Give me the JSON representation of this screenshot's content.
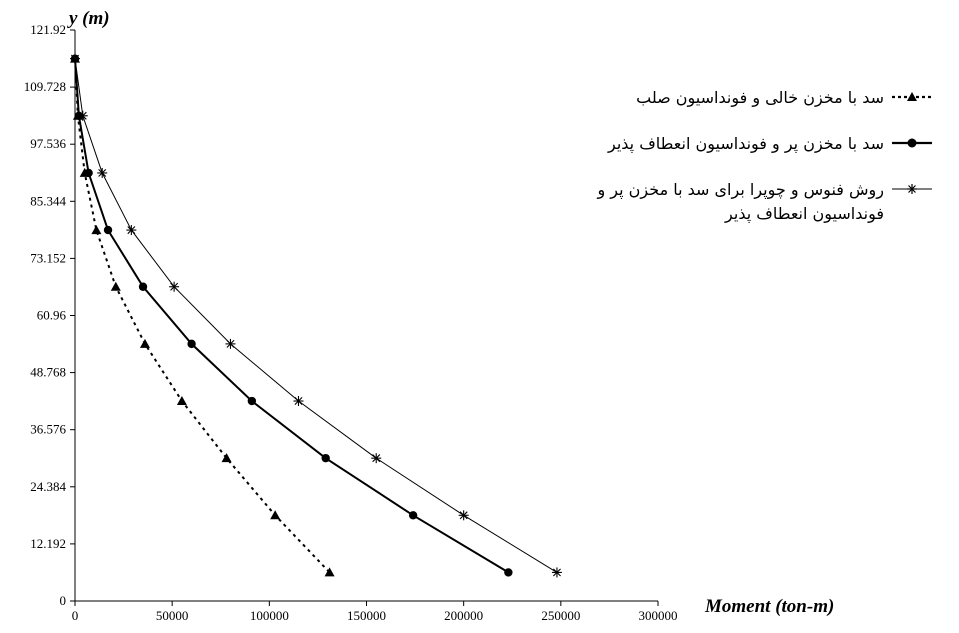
{
  "chart_data": {
    "type": "line",
    "xlabel": "Moment (ton-m)",
    "ylabel": "y  (m)",
    "xlim": [
      0,
      300000
    ],
    "ylim": [
      0,
      121.92
    ],
    "x_ticks": [
      "0",
      "50000",
      "100000",
      "150000",
      "200000",
      "250000",
      "300000"
    ],
    "y_ticks": [
      "0",
      "12.192",
      "24.384",
      "36.576",
      "48.768",
      "60.96",
      "73.152",
      "85.344",
      "97.536",
      "109.728",
      "121.92"
    ],
    "grid": false,
    "legend_position": "right",
    "series": [
      {
        "name": "سد با مخزن خالی و فونداسیون صلب",
        "color": "#000000",
        "line_style": "dotted",
        "marker": "triangle",
        "points": [
          {
            "x": 0,
            "y": 115.8
          },
          {
            "x": 1500,
            "y": 103.6
          },
          {
            "x": 5000,
            "y": 91.4
          },
          {
            "x": 11000,
            "y": 79.2
          },
          {
            "x": 21000,
            "y": 67.1
          },
          {
            "x": 36000,
            "y": 54.9
          },
          {
            "x": 55000,
            "y": 42.7
          },
          {
            "x": 78000,
            "y": 30.5
          },
          {
            "x": 103000,
            "y": 18.3
          },
          {
            "x": 131000,
            "y": 6.1
          }
        ]
      },
      {
        "name": "سد با مخزن پر و فونداسیون انعطاف پذیر",
        "color": "#000000",
        "line_style": "solid-thick",
        "marker": "circle",
        "points": [
          {
            "x": 0,
            "y": 115.8
          },
          {
            "x": 2000,
            "y": 103.6
          },
          {
            "x": 7000,
            "y": 91.4
          },
          {
            "x": 17000,
            "y": 79.2
          },
          {
            "x": 35000,
            "y": 67.1
          },
          {
            "x": 60000,
            "y": 54.9
          },
          {
            "x": 91000,
            "y": 42.7
          },
          {
            "x": 129000,
            "y": 30.5
          },
          {
            "x": 174000,
            "y": 18.3
          },
          {
            "x": 223000,
            "y": 6.1
          }
        ]
      },
      {
        "name": "روش فنوس و چوپرا برای سد با مخزن پر و فونداسیون انعطاف پذیر",
        "color": "#000000",
        "line_style": "solid-thin",
        "marker": "star",
        "points": [
          {
            "x": 0,
            "y": 115.8
          },
          {
            "x": 4000,
            "y": 103.6
          },
          {
            "x": 14000,
            "y": 91.4
          },
          {
            "x": 29000,
            "y": 79.2
          },
          {
            "x": 51000,
            "y": 67.1
          },
          {
            "x": 80000,
            "y": 54.9
          },
          {
            "x": 115000,
            "y": 42.7
          },
          {
            "x": 155000,
            "y": 30.5
          },
          {
            "x": 200000,
            "y": 18.3
          },
          {
            "x": 248000,
            "y": 6.1
          }
        ]
      }
    ]
  }
}
